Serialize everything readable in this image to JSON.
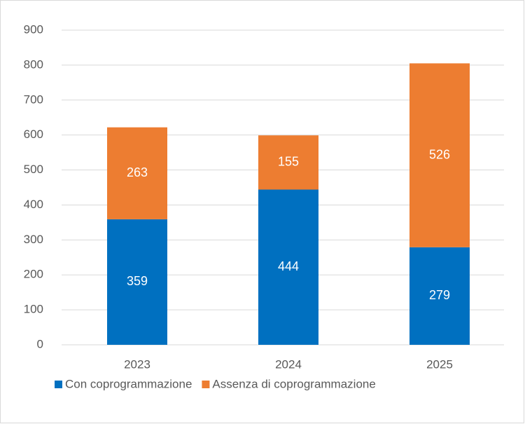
{
  "chart_data": {
    "type": "bar",
    "stacked": true,
    "categories": [
      "2023",
      "2024",
      "2025"
    ],
    "series": [
      {
        "name": "Con coprogrammazione",
        "color": "#0070c0",
        "values": [
          359,
          444,
          279
        ]
      },
      {
        "name": "Assenza di coprogrammazione",
        "color": "#ed7d31",
        "values": [
          263,
          155,
          526
        ]
      }
    ],
    "ylim": [
      0,
      900
    ],
    "yticks": [
      0,
      100,
      200,
      300,
      400,
      500,
      600,
      700,
      800,
      900
    ],
    "grid": true,
    "legend": "bottom"
  }
}
